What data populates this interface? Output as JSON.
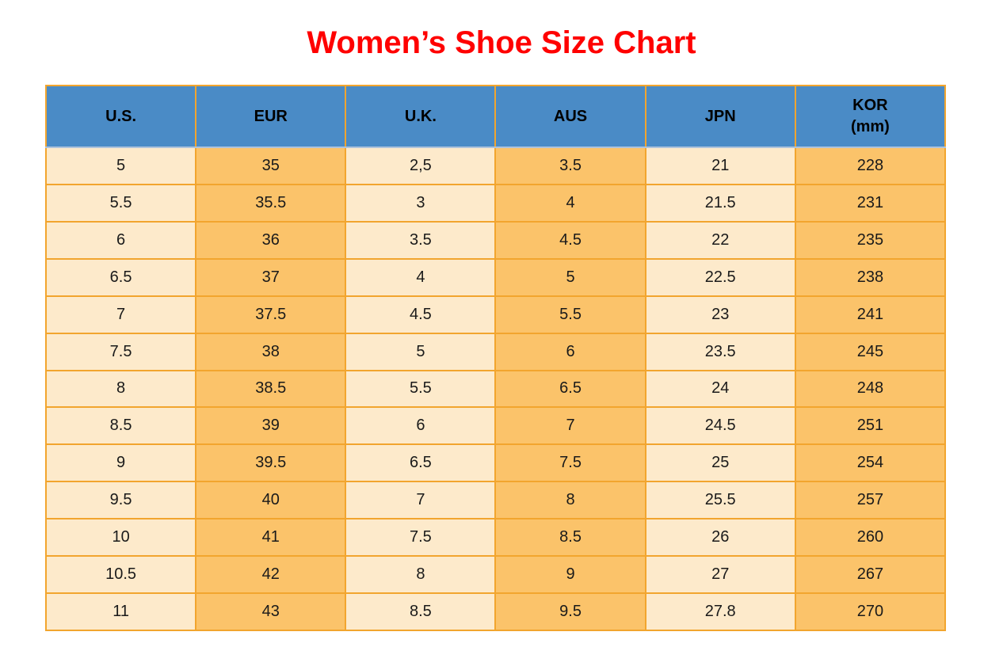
{
  "title": "Women’s Shoe Size Chart",
  "colors": {
    "title": "#FF0000",
    "header_bg": "#4A8BC6",
    "col_light": "#FDEACB",
    "col_dark": "#FBC36A",
    "grid": "#F2A52E",
    "header_divider": "#AEC3DC",
    "text": "#1A1A1A"
  },
  "table": {
    "headers": [
      {
        "key": "us",
        "label": "U.S."
      },
      {
        "key": "eur",
        "label": "EUR"
      },
      {
        "key": "uk",
        "label": "U.K."
      },
      {
        "key": "aus",
        "label": "AUS"
      },
      {
        "key": "jpn",
        "label": "JPN"
      },
      {
        "key": "kor",
        "label": "KOR",
        "sub": "(mm)"
      }
    ]
  },
  "chart_data": {
    "type": "table",
    "title": "Women’s Shoe Size Chart",
    "columns": [
      "U.S.",
      "EUR",
      "U.K.",
      "AUS",
      "JPN",
      "KOR (mm)"
    ],
    "rows": [
      [
        "5",
        "35",
        "2,5",
        "3.5",
        "21",
        "228"
      ],
      [
        "5.5",
        "35.5",
        "3",
        "4",
        "21.5",
        "231"
      ],
      [
        "6",
        "36",
        "3.5",
        "4.5",
        "22",
        "235"
      ],
      [
        "6.5",
        "37",
        "4",
        "5",
        "22.5",
        "238"
      ],
      [
        "7",
        "37.5",
        "4.5",
        "5.5",
        "23",
        "241"
      ],
      [
        "7.5",
        "38",
        "5",
        "6",
        "23.5",
        "245"
      ],
      [
        "8",
        "38.5",
        "5.5",
        "6.5",
        "24",
        "248"
      ],
      [
        "8.5",
        "39",
        "6",
        "7",
        "24.5",
        "251"
      ],
      [
        "9",
        "39.5",
        "6.5",
        "7.5",
        "25",
        "254"
      ],
      [
        "9.5",
        "40",
        "7",
        "8",
        "25.5",
        "257"
      ],
      [
        "10",
        "41",
        "7.5",
        "8.5",
        "26",
        "260"
      ],
      [
        "10.5",
        "42",
        "8",
        "9",
        "27",
        "267"
      ],
      [
        "11",
        "43",
        "8.5",
        "9.5",
        "27.8",
        "270"
      ]
    ]
  }
}
